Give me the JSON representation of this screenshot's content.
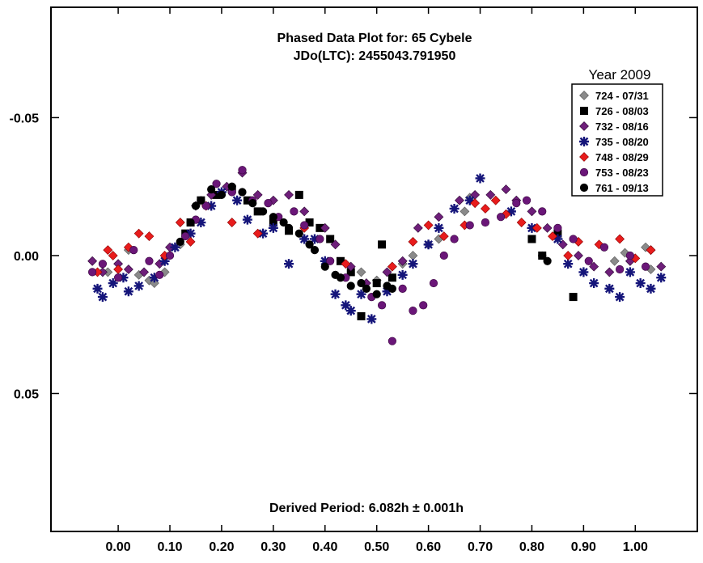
{
  "chart_data": {
    "type": "scatter",
    "title": "Phased Data Plot for: 65 Cybele",
    "subtitle": "JDo(LTC): 2455043.791950",
    "footer": "Derived Period: 6.082h ± 0.001h",
    "legend_title": "Year 2009",
    "legend_position": "top-right",
    "xlim": [
      -0.13,
      1.12
    ],
    "ylim": [
      -0.09,
      0.1
    ],
    "y_inverted": true,
    "x_ticks": [
      0.0,
      0.1,
      0.2,
      0.3,
      0.4,
      0.5,
      0.6,
      0.7,
      0.8,
      0.9,
      1.0
    ],
    "x_tick_labels": [
      "0.00",
      "0.10",
      "0.20",
      "0.30",
      "0.40",
      "0.50",
      "0.60",
      "0.70",
      "0.80",
      "0.90",
      "1.00"
    ],
    "y_ticks": [
      -0.05,
      0.0,
      0.05
    ],
    "y_tick_labels": [
      "-0.05",
      "0.00",
      "0.05"
    ],
    "series": [
      {
        "name": "724 - 07/31",
        "marker": "diamond",
        "color": "#8a8a8a",
        "points": [
          [
            -0.02,
            0.006
          ],
          [
            0.02,
            -0.002
          ],
          [
            0.04,
            0.007
          ],
          [
            0.06,
            0.009
          ],
          [
            0.07,
            0.01
          ],
          [
            0.09,
            0.006
          ],
          [
            0.12,
            -0.004
          ],
          [
            0.47,
            0.006
          ],
          [
            0.5,
            0.009
          ],
          [
            0.53,
            0.004
          ],
          [
            0.55,
            0.003
          ],
          [
            0.57,
            0.0
          ],
          [
            0.6,
            -0.004
          ],
          [
            0.62,
            -0.006
          ],
          [
            0.67,
            -0.016
          ],
          [
            0.68,
            -0.021
          ],
          [
            0.96,
            0.002
          ],
          [
            0.98,
            -0.001
          ],
          [
            1.02,
            -0.003
          ],
          [
            1.03,
            0.005
          ]
        ]
      },
      {
        "name": "726 - 08/03",
        "marker": "square",
        "color": "#000000",
        "points": [
          [
            0.13,
            -0.008
          ],
          [
            0.14,
            -0.012
          ],
          [
            0.16,
            -0.02
          ],
          [
            0.19,
            -0.022
          ],
          [
            0.22,
            -0.024
          ],
          [
            0.25,
            -0.02
          ],
          [
            0.27,
            -0.016
          ],
          [
            0.3,
            -0.012
          ],
          [
            0.33,
            -0.009
          ],
          [
            0.35,
            -0.022
          ],
          [
            0.37,
            -0.012
          ],
          [
            0.39,
            -0.01
          ],
          [
            0.41,
            -0.006
          ],
          [
            0.43,
            0.002
          ],
          [
            0.45,
            0.006
          ],
          [
            0.47,
            0.022
          ],
          [
            0.5,
            0.01
          ],
          [
            0.51,
            -0.004
          ],
          [
            0.53,
            0.008
          ],
          [
            0.8,
            -0.006
          ],
          [
            0.82,
            0.0
          ],
          [
            0.85,
            -0.008
          ],
          [
            0.88,
            0.015
          ]
        ]
      },
      {
        "name": "732 - 08/16",
        "marker": "diamond",
        "color": "#6e1f7a",
        "points": [
          [
            -0.05,
            0.002
          ],
          [
            -0.03,
            0.006
          ],
          [
            0.0,
            0.003
          ],
          [
            0.02,
            0.005
          ],
          [
            0.05,
            0.006
          ],
          [
            0.08,
            0.003
          ],
          [
            0.1,
            -0.003
          ],
          [
            0.15,
            -0.018
          ],
          [
            0.18,
            -0.022
          ],
          [
            0.21,
            -0.025
          ],
          [
            0.24,
            -0.03
          ],
          [
            0.27,
            -0.022
          ],
          [
            0.3,
            -0.02
          ],
          [
            0.33,
            -0.022
          ],
          [
            0.36,
            -0.016
          ],
          [
            0.4,
            -0.01
          ],
          [
            0.42,
            -0.004
          ],
          [
            0.45,
            0.004
          ],
          [
            0.48,
            0.01
          ],
          [
            0.52,
            0.006
          ],
          [
            0.55,
            0.002
          ],
          [
            0.58,
            -0.01
          ],
          [
            0.62,
            -0.014
          ],
          [
            0.66,
            -0.02
          ],
          [
            0.69,
            -0.022
          ],
          [
            0.72,
            -0.022
          ],
          [
            0.75,
            -0.024
          ],
          [
            0.77,
            -0.02
          ],
          [
            0.8,
            -0.016
          ],
          [
            0.83,
            -0.01
          ],
          [
            0.86,
            -0.004
          ],
          [
            0.89,
            0.0
          ],
          [
            0.92,
            0.004
          ],
          [
            0.95,
            0.006
          ],
          [
            0.99,
            0.002
          ],
          [
            1.03,
            -0.002
          ],
          [
            1.05,
            0.004
          ]
        ]
      },
      {
        "name": "735 - 08/20",
        "marker": "asterisk",
        "color": "#15157a",
        "points": [
          [
            -0.04,
            0.012
          ],
          [
            -0.03,
            0.015
          ],
          [
            -0.01,
            0.01
          ],
          [
            0.01,
            0.008
          ],
          [
            0.02,
            0.013
          ],
          [
            0.04,
            0.011
          ],
          [
            0.07,
            0.008
          ],
          [
            0.09,
            0.002
          ],
          [
            0.11,
            -0.003
          ],
          [
            0.14,
            -0.008
          ],
          [
            0.16,
            -0.012
          ],
          [
            0.18,
            -0.018
          ],
          [
            0.2,
            -0.023
          ],
          [
            0.23,
            -0.02
          ],
          [
            0.25,
            -0.013
          ],
          [
            0.28,
            -0.008
          ],
          [
            0.3,
            -0.01
          ],
          [
            0.33,
            0.003
          ],
          [
            0.36,
            -0.006
          ],
          [
            0.38,
            -0.006
          ],
          [
            0.4,
            0.002
          ],
          [
            0.42,
            0.014
          ],
          [
            0.44,
            0.018
          ],
          [
            0.45,
            0.02
          ],
          [
            0.47,
            0.014
          ],
          [
            0.49,
            0.023
          ],
          [
            0.52,
            0.013
          ],
          [
            0.55,
            0.007
          ],
          [
            0.57,
            0.003
          ],
          [
            0.6,
            -0.004
          ],
          [
            0.62,
            -0.01
          ],
          [
            0.65,
            -0.017
          ],
          [
            0.68,
            -0.02
          ],
          [
            0.7,
            -0.028
          ],
          [
            0.76,
            -0.016
          ],
          [
            0.8,
            -0.01
          ],
          [
            0.85,
            -0.006
          ],
          [
            0.87,
            0.003
          ],
          [
            0.9,
            0.006
          ],
          [
            0.92,
            0.01
          ],
          [
            0.95,
            0.012
          ],
          [
            0.97,
            0.015
          ],
          [
            0.99,
            0.006
          ],
          [
            1.01,
            0.01
          ],
          [
            1.03,
            0.012
          ],
          [
            1.05,
            0.008
          ]
        ]
      },
      {
        "name": "748 - 08/29",
        "marker": "diamond",
        "color": "#e81c1c",
        "points": [
          [
            -0.04,
            0.006
          ],
          [
            -0.02,
            -0.002
          ],
          [
            -0.01,
            0.0
          ],
          [
            0.0,
            0.005
          ],
          [
            0.02,
            -0.003
          ],
          [
            0.04,
            -0.008
          ],
          [
            0.06,
            -0.007
          ],
          [
            0.09,
            0.0
          ],
          [
            0.12,
            -0.012
          ],
          [
            0.14,
            -0.005
          ],
          [
            0.17,
            -0.018
          ],
          [
            0.22,
            -0.012
          ],
          [
            0.27,
            -0.008
          ],
          [
            0.36,
            -0.01
          ],
          [
            0.44,
            0.003
          ],
          [
            0.53,
            0.004
          ],
          [
            0.57,
            -0.005
          ],
          [
            0.6,
            -0.011
          ],
          [
            0.63,
            -0.007
          ],
          [
            0.67,
            -0.011
          ],
          [
            0.69,
            -0.019
          ],
          [
            0.71,
            -0.017
          ],
          [
            0.73,
            -0.02
          ],
          [
            0.75,
            -0.015
          ],
          [
            0.78,
            -0.012
          ],
          [
            0.81,
            -0.01
          ],
          [
            0.84,
            -0.007
          ],
          [
            0.87,
            0.0
          ],
          [
            0.89,
            -0.005
          ],
          [
            0.93,
            -0.004
          ],
          [
            0.97,
            -0.006
          ],
          [
            1.0,
            0.001
          ],
          [
            1.03,
            -0.002
          ]
        ]
      },
      {
        "name": "753 - 08/23",
        "marker": "circle",
        "color": "#6a1678",
        "points": [
          [
            -0.05,
            0.006
          ],
          [
            -0.03,
            0.003
          ],
          [
            0.0,
            0.008
          ],
          [
            0.03,
            -0.002
          ],
          [
            0.06,
            0.002
          ],
          [
            0.08,
            0.007
          ],
          [
            0.1,
            0.0
          ],
          [
            0.13,
            -0.007
          ],
          [
            0.15,
            -0.013
          ],
          [
            0.17,
            -0.018
          ],
          [
            0.19,
            -0.026
          ],
          [
            0.22,
            -0.023
          ],
          [
            0.24,
            -0.031
          ],
          [
            0.26,
            -0.02
          ],
          [
            0.29,
            -0.019
          ],
          [
            0.31,
            -0.014
          ],
          [
            0.34,
            -0.016
          ],
          [
            0.36,
            -0.011
          ],
          [
            0.39,
            -0.006
          ],
          [
            0.41,
            0.002
          ],
          [
            0.44,
            0.008
          ],
          [
            0.47,
            0.01
          ],
          [
            0.49,
            0.015
          ],
          [
            0.51,
            0.018
          ],
          [
            0.53,
            0.031
          ],
          [
            0.55,
            0.012
          ],
          [
            0.57,
            0.02
          ],
          [
            0.59,
            0.018
          ],
          [
            0.61,
            0.01
          ],
          [
            0.63,
            0.0
          ],
          [
            0.65,
            -0.006
          ],
          [
            0.68,
            -0.011
          ],
          [
            0.71,
            -0.012
          ],
          [
            0.74,
            -0.014
          ],
          [
            0.77,
            -0.019
          ],
          [
            0.79,
            -0.02
          ],
          [
            0.82,
            -0.016
          ],
          [
            0.85,
            -0.01
          ],
          [
            0.88,
            -0.006
          ],
          [
            0.91,
            0.002
          ],
          [
            0.94,
            -0.003
          ],
          [
            0.97,
            0.005
          ],
          [
            0.99,
            0.0
          ],
          [
            1.02,
            0.004
          ]
        ]
      },
      {
        "name": "761 - 09/13",
        "marker": "circle",
        "color": "#000000",
        "points": [
          [
            0.12,
            -0.005
          ],
          [
            0.14,
            -0.012
          ],
          [
            0.15,
            -0.018
          ],
          [
            0.16,
            -0.02
          ],
          [
            0.18,
            -0.024
          ],
          [
            0.2,
            -0.022
          ],
          [
            0.22,
            -0.025
          ],
          [
            0.24,
            -0.023
          ],
          [
            0.26,
            -0.019
          ],
          [
            0.28,
            -0.016
          ],
          [
            0.3,
            -0.014
          ],
          [
            0.32,
            -0.012
          ],
          [
            0.33,
            -0.01
          ],
          [
            0.35,
            -0.008
          ],
          [
            0.37,
            -0.004
          ],
          [
            0.38,
            -0.002
          ],
          [
            0.4,
            0.004
          ],
          [
            0.42,
            0.007
          ],
          [
            0.43,
            0.008
          ],
          [
            0.45,
            0.011
          ],
          [
            0.47,
            0.01
          ],
          [
            0.48,
            0.012
          ],
          [
            0.5,
            0.014
          ],
          [
            0.52,
            0.011
          ],
          [
            0.53,
            0.012
          ],
          [
            0.82,
            0.0
          ],
          [
            0.83,
            0.002
          ]
        ]
      }
    ]
  }
}
